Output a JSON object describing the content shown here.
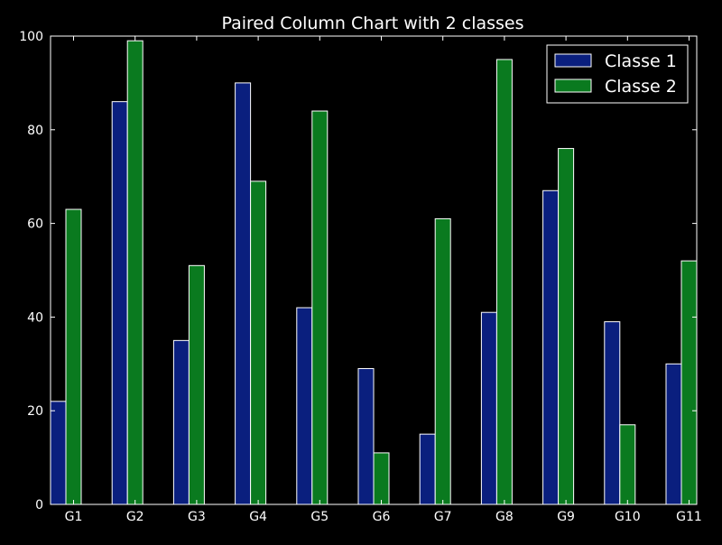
{
  "chart_data": {
    "type": "bar",
    "title": "Paired Column Chart with 2 classes",
    "xlabel": "",
    "ylabel": "",
    "categories": [
      "G1",
      "G2",
      "G3",
      "G4",
      "G5",
      "G6",
      "G7",
      "G8",
      "G9",
      "G10",
      "G11"
    ],
    "series": [
      {
        "name": "Classe 1",
        "color": "#0a1f7e",
        "values": [
          22,
          86,
          35,
          90,
          42,
          29,
          15,
          41,
          67,
          39,
          30
        ]
      },
      {
        "name": "Classe 2",
        "color": "#0a7a1f",
        "values": [
          63,
          99,
          51,
          69,
          84,
          11,
          61,
          95,
          76,
          17,
          52
        ]
      }
    ],
    "ylim": [
      0,
      100
    ],
    "yticks": [
      0,
      20,
      40,
      60,
      80,
      100
    ],
    "grid": false,
    "legend_position": "top-right",
    "background": "#000000",
    "foreground": "#ffffff"
  }
}
